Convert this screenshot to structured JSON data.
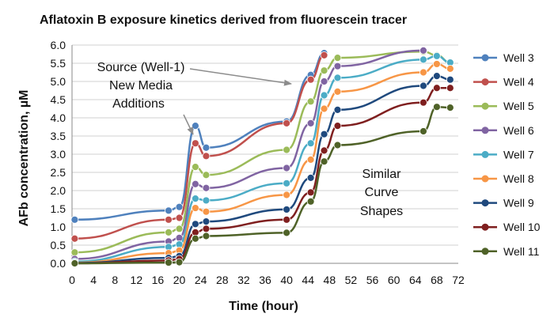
{
  "chart_data": {
    "type": "line",
    "title": "Aflatoxin B exposure kinetics derived from fluorescein tracer",
    "xlabel": "Time (hour)",
    "ylabel": "AFb concentration, µM",
    "xlim": [
      0,
      72
    ],
    "ylim": [
      0,
      6.0
    ],
    "x_ticks": [
      "0",
      "4",
      "8",
      "12",
      "16",
      "20",
      "24",
      "28",
      "32",
      "36",
      "40",
      "44",
      "48",
      "52",
      "56",
      "60",
      "64",
      "68",
      "72"
    ],
    "y_ticks": [
      "0.0",
      "0.5",
      "1.0",
      "1.5",
      "2.0",
      "2.5",
      "3.0",
      "3.5",
      "4.0",
      "4.5",
      "5.0",
      "5.5",
      "6.0"
    ],
    "grid": "horizontal",
    "legend_position": "right",
    "annotations": [
      {
        "lines": [
          "Source (Well-1)",
          "New Media",
          "Additions"
        ]
      },
      {
        "lines": [
          "Similar",
          "Curve",
          "Shapes"
        ]
      }
    ],
    "series": [
      {
        "name": "Well 3",
        "color": "#4f81bd",
        "points": [
          [
            0.5,
            1.2
          ],
          [
            18,
            1.45
          ],
          [
            20,
            1.55
          ],
          [
            23,
            3.78
          ],
          [
            25,
            3.18
          ],
          [
            40,
            3.9
          ],
          [
            44.5,
            5.18
          ],
          [
            47,
            5.78
          ]
        ]
      },
      {
        "name": "Well 4",
        "color": "#c0504d",
        "points": [
          [
            0.5,
            0.68
          ],
          [
            18,
            1.2
          ],
          [
            20,
            1.25
          ],
          [
            23,
            3.3
          ],
          [
            25,
            2.95
          ],
          [
            40,
            3.85
          ],
          [
            44.5,
            5.05
          ],
          [
            47,
            5.72
          ]
        ]
      },
      {
        "name": "Well 5",
        "color": "#9bbb59",
        "points": [
          [
            0.5,
            0.3
          ],
          [
            18,
            0.85
          ],
          [
            20,
            0.95
          ],
          [
            23,
            2.65
          ],
          [
            25,
            2.43
          ],
          [
            40,
            3.12
          ],
          [
            44.5,
            4.45
          ],
          [
            47,
            5.3
          ],
          [
            49.5,
            5.65
          ],
          [
            65.5,
            5.82
          ],
          [
            68,
            5.72
          ],
          [
            70.5,
            5.52
          ]
        ]
      },
      {
        "name": "Well 6",
        "color": "#8064a2",
        "points": [
          [
            0.5,
            0.12
          ],
          [
            18,
            0.6
          ],
          [
            20,
            0.7
          ],
          [
            23,
            2.18
          ],
          [
            25,
            2.07
          ],
          [
            40,
            2.62
          ],
          [
            44.5,
            3.85
          ],
          [
            47,
            5.0
          ],
          [
            49.5,
            5.42
          ],
          [
            65.5,
            5.85
          ]
        ]
      },
      {
        "name": "Well 7",
        "color": "#4bacc6",
        "points": [
          [
            0.5,
            0.05
          ],
          [
            18,
            0.45
          ],
          [
            20,
            0.52
          ],
          [
            23,
            1.78
          ],
          [
            25,
            1.73
          ],
          [
            40,
            2.2
          ],
          [
            44.5,
            3.3
          ],
          [
            47,
            4.62
          ],
          [
            49.5,
            5.1
          ],
          [
            65.5,
            5.6
          ],
          [
            68,
            5.7
          ],
          [
            70.5,
            5.52
          ]
        ]
      },
      {
        "name": "Well 8",
        "color": "#f79646",
        "points": [
          [
            0.5,
            0.02
          ],
          [
            18,
            0.28
          ],
          [
            20,
            0.35
          ],
          [
            23,
            1.52
          ],
          [
            25,
            1.42
          ],
          [
            40,
            1.88
          ],
          [
            44.5,
            2.85
          ],
          [
            47,
            4.25
          ],
          [
            49.5,
            4.72
          ],
          [
            65.5,
            5.25
          ],
          [
            68,
            5.48
          ],
          [
            70.5,
            5.35
          ]
        ]
      },
      {
        "name": "Well 9",
        "color": "#1f497d",
        "points": [
          [
            0.5,
            0.01
          ],
          [
            18,
            0.15
          ],
          [
            20,
            0.2
          ],
          [
            23,
            1.08
          ],
          [
            25,
            1.15
          ],
          [
            40,
            1.48
          ],
          [
            44.5,
            2.35
          ],
          [
            47,
            3.55
          ],
          [
            49.5,
            4.22
          ],
          [
            65.5,
            4.88
          ],
          [
            68,
            5.15
          ],
          [
            70.5,
            5.05
          ]
        ]
      },
      {
        "name": "Well 10",
        "color": "#7f1f1f",
        "points": [
          [
            0.5,
            0.0
          ],
          [
            18,
            0.08
          ],
          [
            20,
            0.12
          ],
          [
            23,
            0.85
          ],
          [
            25,
            0.95
          ],
          [
            40,
            1.2
          ],
          [
            44.5,
            1.95
          ],
          [
            47,
            3.1
          ],
          [
            49.5,
            3.78
          ],
          [
            65.5,
            4.42
          ],
          [
            68,
            4.82
          ],
          [
            70.5,
            4.82
          ]
        ]
      },
      {
        "name": "Well 11",
        "color": "#4f6228",
        "points": [
          [
            0.5,
            0.0
          ],
          [
            18,
            0.02
          ],
          [
            20,
            0.03
          ],
          [
            23,
            0.68
          ],
          [
            25,
            0.75
          ],
          [
            40,
            0.84
          ],
          [
            44.5,
            1.7
          ],
          [
            47,
            2.8
          ],
          [
            49.5,
            3.25
          ],
          [
            65.5,
            3.63
          ],
          [
            68,
            4.3
          ],
          [
            70.5,
            4.28
          ]
        ]
      }
    ]
  }
}
